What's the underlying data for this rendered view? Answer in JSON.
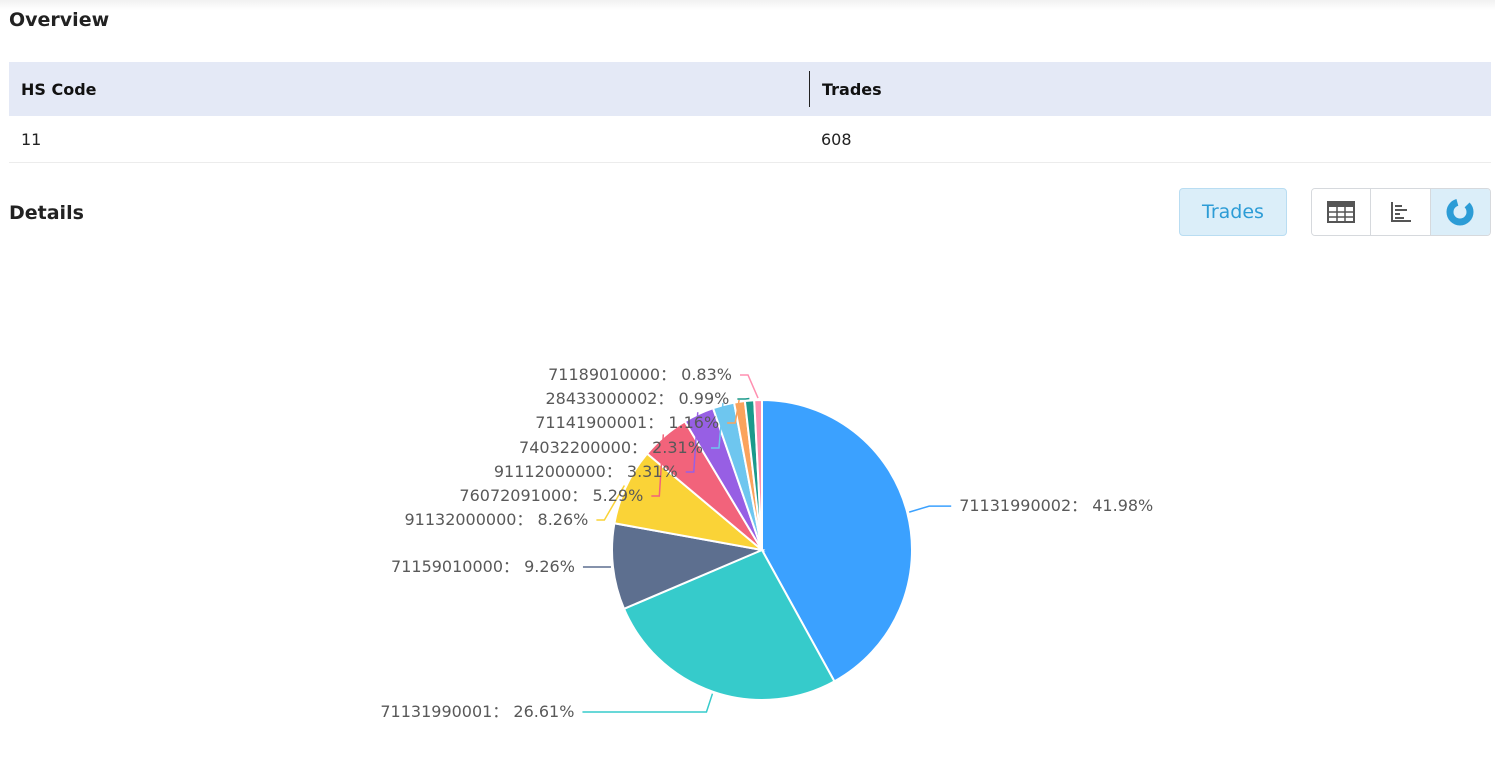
{
  "overview": {
    "title": "Overview",
    "columns": [
      "HS Code",
      "Trades"
    ],
    "row": [
      "11",
      "608"
    ]
  },
  "details": {
    "title": "Details",
    "metric_button": "Trades",
    "views": [
      {
        "icon": "table-icon",
        "active": false
      },
      {
        "icon": "bar-chart-icon",
        "active": false
      },
      {
        "icon": "pie-chart-icon",
        "active": true
      }
    ]
  },
  "chart_data": {
    "type": "pie",
    "labels": [
      "71131990002",
      "71131990001",
      "71159010000",
      "91132000000",
      "76072091000",
      "91112000000",
      "74032200000",
      "71141900001",
      "28433000002",
      "71189010000"
    ],
    "values": [
      41.98,
      26.61,
      9.26,
      8.26,
      5.29,
      3.31,
      2.31,
      1.16,
      0.99,
      0.83
    ],
    "colors": [
      "#3ba1ff",
      "#36cbcb",
      "#5d6f8f",
      "#fad337",
      "#f2637b",
      "#975fe4",
      "#6ec6ef",
      "#fba35c",
      "#1b9a8c",
      "#ff8fb0"
    ]
  }
}
